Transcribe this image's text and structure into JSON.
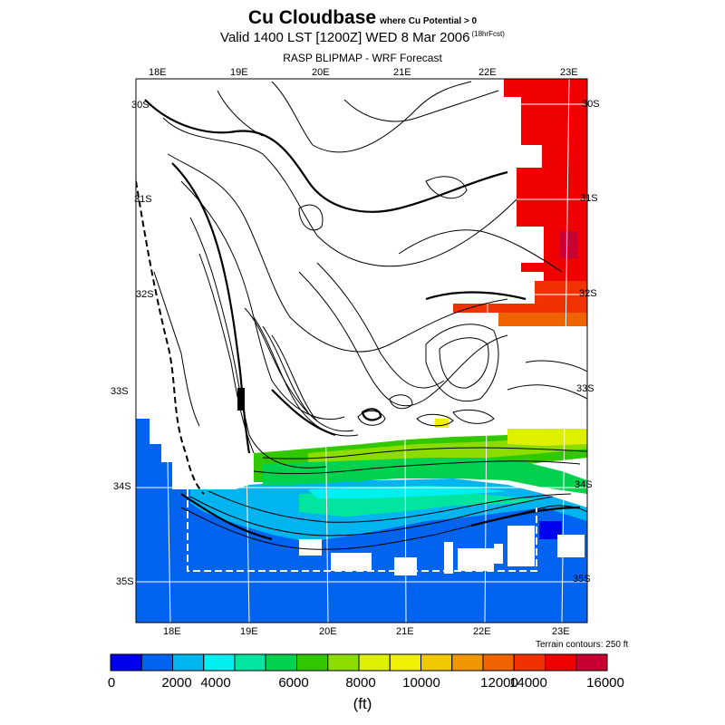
{
  "header": {
    "title": "Cu Cloudbase",
    "title_note": "where Cu Potential > 0",
    "subtitle": "Valid 1400 LST [1200Z] WED 8 Mar 2006",
    "subtitle_note": "(18hrFcst)",
    "product": "RASP BLIPMAP - WRF Forecast"
  },
  "map": {
    "lon_labels_top": [
      "18E",
      "19E",
      "20E",
      "21E",
      "22E",
      "23E"
    ],
    "lon_labels_bottom": [
      "18E",
      "19E",
      "20E",
      "21E",
      "22E",
      "23E"
    ],
    "lat_labels_right": [
      "30S",
      "31S",
      "32S",
      "33S",
      "34S",
      "35S"
    ],
    "lat_labels_left": [
      "30S",
      "31S",
      "32S",
      "33S",
      "34S",
      "35S"
    ],
    "terrain_note": "Terrain contours: 250 ft"
  },
  "legend": {
    "ticks": [
      "0",
      "2000",
      "4000",
      "6000",
      "8000",
      "10000",
      "12000",
      "14000",
      "16000"
    ],
    "units": "(ft)",
    "colors": [
      "#0000f0",
      "#0064f0",
      "#00b4f0",
      "#00f0f0",
      "#00e6a0",
      "#00d250",
      "#32c800",
      "#8cdc00",
      "#dcf000",
      "#f0f000",
      "#f0c800",
      "#f09600",
      "#f06400",
      "#f03200",
      "#f00000",
      "#c80032"
    ]
  }
}
